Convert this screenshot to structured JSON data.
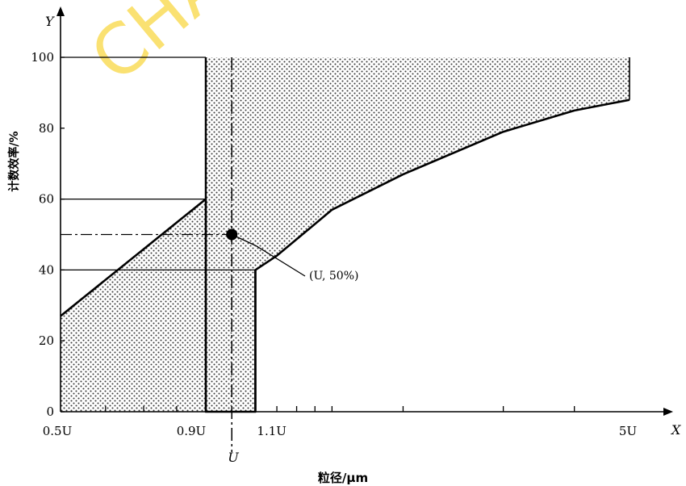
{
  "watermark": "CHAC",
  "chart_data": {
    "type": "area",
    "xlabel": "粒径/μm",
    "ylabel": "计数效率/%",
    "x_axis_letter": "X",
    "y_axis_letter": "Y",
    "ylim": [
      0,
      100
    ],
    "yticks": [
      0,
      20,
      40,
      60,
      80,
      100
    ],
    "x_scale": "log",
    "xlim": [
      0.5,
      5
    ],
    "xtick_labels": [
      {
        "x": 0.5,
        "label": "0.5U"
      },
      {
        "x": 0.9,
        "label": "0.9U"
      },
      {
        "x": 1.1,
        "label": "1.1U"
      },
      {
        "x": 5,
        "label": "5U"
      }
    ],
    "xminor_ticks": [
      0.6,
      0.7,
      0.8,
      1.0,
      1.2,
      1.3,
      1.4,
      1.5,
      2,
      3,
      4
    ],
    "below_U_marker": "U",
    "acceptance_region": {
      "lower_boundary": [
        [
          0.5,
          27
        ],
        [
          0.9,
          60
        ],
        [
          0.9,
          0
        ],
        [
          1.1,
          0
        ],
        [
          1.1,
          40
        ],
        [
          1.2,
          44
        ],
        [
          1.5,
          57
        ],
        [
          2,
          67
        ],
        [
          3,
          79
        ],
        [
          4,
          85
        ],
        [
          5,
          88
        ]
      ],
      "upper_boundary": [
        [
          0.5,
          0
        ],
        [
          0.9,
          0
        ],
        [
          0.9,
          100
        ],
        [
          5,
          100
        ],
        [
          5,
          88
        ]
      ]
    },
    "reference_lines": [
      {
        "y": 100,
        "from_x": 0.5,
        "to_x": 0.9
      },
      {
        "y": 60,
        "from_x": 0.5,
        "to_x": 0.9
      },
      {
        "y": 40,
        "from_x": 0.5,
        "to_x": 1.1
      },
      {
        "y": 50,
        "from_x": 0.5,
        "to_x": 1.0,
        "style": "dash-dot"
      }
    ],
    "point": {
      "x": 1.0,
      "y": 50,
      "label": "(U, 50%)"
    }
  }
}
